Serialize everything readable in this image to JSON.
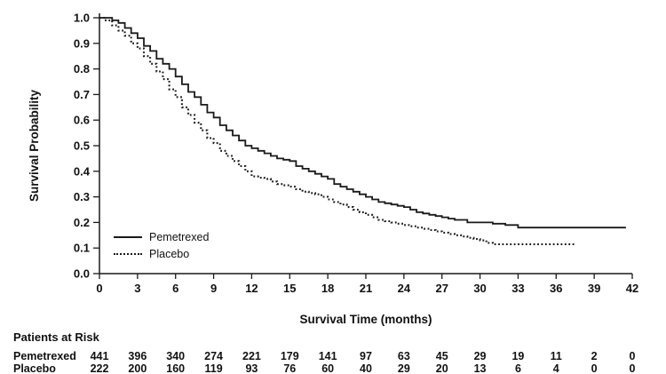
{
  "chart_data": {
    "type": "line",
    "subtype": "kaplan-meier-step",
    "title": "",
    "xlabel": "Survival Time (months)",
    "ylabel": "Survival Probability",
    "xlim": [
      0,
      42
    ],
    "ylim": [
      0,
      1
    ],
    "x_ticks": [
      0,
      3,
      6,
      9,
      12,
      15,
      18,
      21,
      24,
      27,
      30,
      33,
      36,
      39,
      42
    ],
    "y_ticks": [
      "1.0",
      "0.9",
      "0.8",
      "0.7",
      "0.6",
      "0.5",
      "0.4",
      "0.3",
      "0.2",
      "0.1",
      "0.0"
    ],
    "grid": false,
    "legend_position": "lower-left",
    "series": [
      {
        "name": "Pemetrexed",
        "style": "solid",
        "step": true,
        "x": [
          0,
          0.5,
          1,
          1.5,
          2,
          2.5,
          3,
          3.5,
          4,
          4.5,
          5,
          5.5,
          6,
          6.5,
          7,
          7.5,
          8,
          8.5,
          9,
          9.5,
          10,
          10.5,
          11,
          11.5,
          12,
          12.5,
          13,
          13.5,
          14,
          14.5,
          15,
          15.5,
          16,
          16.5,
          17,
          17.5,
          18,
          18.5,
          19,
          19.5,
          20,
          20.5,
          21,
          21.5,
          22,
          22.5,
          23,
          23.5,
          24,
          24.5,
          25,
          25.5,
          26,
          26.5,
          27,
          27.5,
          28,
          29,
          30,
          31,
          32,
          33,
          41.5
        ],
        "y": [
          1.0,
          1.0,
          0.99,
          0.98,
          0.96,
          0.94,
          0.92,
          0.89,
          0.87,
          0.84,
          0.82,
          0.8,
          0.77,
          0.74,
          0.71,
          0.69,
          0.66,
          0.63,
          0.61,
          0.58,
          0.56,
          0.54,
          0.52,
          0.5,
          0.49,
          0.48,
          0.47,
          0.46,
          0.45,
          0.445,
          0.44,
          0.42,
          0.41,
          0.4,
          0.39,
          0.38,
          0.37,
          0.35,
          0.34,
          0.33,
          0.32,
          0.31,
          0.3,
          0.29,
          0.28,
          0.275,
          0.27,
          0.265,
          0.26,
          0.25,
          0.24,
          0.235,
          0.23,
          0.225,
          0.22,
          0.215,
          0.21,
          0.2,
          0.2,
          0.195,
          0.19,
          0.18,
          0.18
        ]
      },
      {
        "name": "Placebo",
        "style": "dotted",
        "step": true,
        "x": [
          0,
          0.5,
          1,
          1.5,
          2,
          2.5,
          3,
          3.5,
          4,
          4.5,
          5,
          5.5,
          6,
          6.5,
          7,
          7.5,
          8,
          8.5,
          9,
          9.5,
          10,
          10.5,
          11,
          11.5,
          12,
          12.5,
          13,
          13.5,
          14,
          14.5,
          15,
          15.5,
          16,
          16.5,
          17,
          17.5,
          18,
          18.5,
          19,
          19.5,
          20,
          20.5,
          21,
          21.5,
          22,
          22.5,
          23,
          23.5,
          24,
          24.5,
          25,
          25.5,
          26,
          26.5,
          27,
          27.5,
          28,
          28.5,
          29,
          29.5,
          30,
          30.5,
          31,
          37.5
        ],
        "y": [
          1.0,
          0.99,
          0.97,
          0.95,
          0.93,
          0.9,
          0.88,
          0.85,
          0.82,
          0.79,
          0.76,
          0.72,
          0.69,
          0.65,
          0.62,
          0.59,
          0.56,
          0.53,
          0.51,
          0.48,
          0.46,
          0.44,
          0.42,
          0.4,
          0.38,
          0.375,
          0.37,
          0.36,
          0.35,
          0.345,
          0.34,
          0.33,
          0.32,
          0.315,
          0.31,
          0.3,
          0.29,
          0.28,
          0.27,
          0.26,
          0.25,
          0.24,
          0.23,
          0.22,
          0.21,
          0.205,
          0.2,
          0.195,
          0.19,
          0.185,
          0.18,
          0.175,
          0.17,
          0.165,
          0.16,
          0.155,
          0.15,
          0.145,
          0.14,
          0.135,
          0.13,
          0.12,
          0.115,
          0.115
        ]
      }
    ]
  },
  "risk_table": {
    "title": "Patients at Risk",
    "time_points": [
      0,
      3,
      6,
      9,
      12,
      15,
      18,
      21,
      24,
      27,
      30,
      33,
      36,
      39,
      42
    ],
    "rows": [
      {
        "label": "Pemetrexed",
        "values": [
          441,
          396,
          340,
          274,
          221,
          179,
          141,
          97,
          63,
          45,
          29,
          19,
          11,
          2,
          0
        ]
      },
      {
        "label": "Placebo",
        "values": [
          222,
          200,
          160,
          119,
          93,
          76,
          60,
          40,
          29,
          20,
          13,
          6,
          4,
          0,
          0
        ]
      }
    ]
  },
  "colors": {
    "curve": "#1a1a1a",
    "text": "#111111",
    "background": "#ffffff"
  }
}
